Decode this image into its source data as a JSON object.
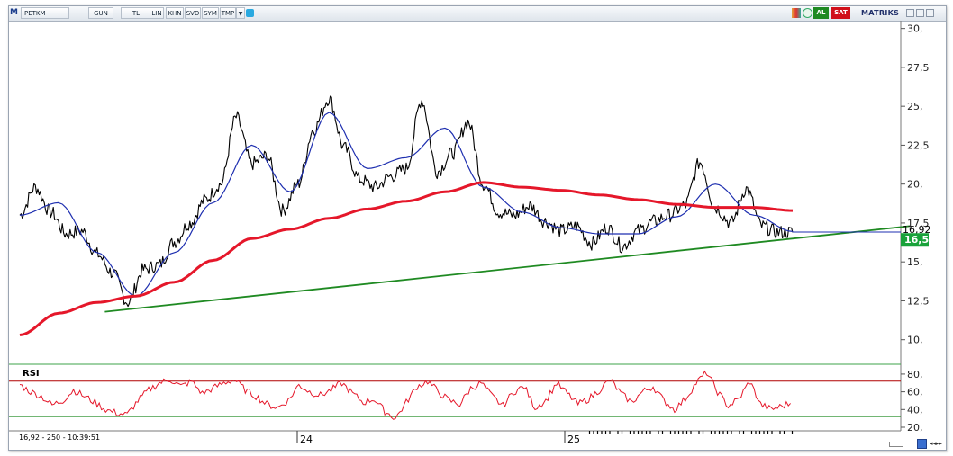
{
  "toolbar": {
    "logo": "M",
    "symbol": "PETKM",
    "period": "GUN",
    "currency": "TL",
    "buttons": [
      "LIN",
      "KHN",
      "SVD",
      "SYM",
      "TMP"
    ],
    "buy_label": "AL",
    "sell_label": "SAT",
    "brand": "MATRIKS",
    "icons": [
      "dropdown-arrow-icon",
      "twitter-icon",
      "color-palette-icon",
      "clock-icon",
      "minimize-icon",
      "maximize-icon",
      "close-icon"
    ]
  },
  "colors": {
    "price": "#000000",
    "fast_ma": "#1e2fb0",
    "slow_ma": "#e5172a",
    "trendline": "#1f8a22",
    "rsi": "#e5172a",
    "rsi_upper": "#b00000",
    "rsi_lower": "#1f8a22",
    "last_price_badge": "#19a23a",
    "buy": "#1f8a22",
    "sell": "#d0101a"
  },
  "price_axis": {
    "ticks": [
      "30,",
      "27,5",
      "25,",
      "22,5",
      "20,",
      "17,5",
      "15,",
      "12,5",
      "10,"
    ],
    "last_price_label": "16,92",
    "badge_label": "16,5"
  },
  "rsi_panel": {
    "title": "RSI",
    "ticks": [
      "80,",
      "60,",
      "40,",
      "20,"
    ]
  },
  "time_axis": {
    "labels": [
      "24",
      "25"
    ]
  },
  "status_bar": {
    "text": "16,92 - 250 - 10:39:51"
  },
  "chart_data": {
    "type": "line",
    "symbol": "PETKM",
    "ylim": [
      9,
      30.5
    ],
    "grid": false,
    "series": [
      {
        "name": "",
        "role": "price",
        "t": [
          0,
          0.02,
          0.04,
          0.06,
          0.08,
          0.1,
          0.12,
          0.14,
          0.16,
          0.18,
          0.2,
          0.22,
          0.24,
          0.26,
          0.28,
          0.3,
          0.32,
          0.34,
          0.36,
          0.38,
          0.4,
          0.42,
          0.44,
          0.46,
          0.48,
          0.5,
          0.52,
          0.54,
          0.56,
          0.58,
          0.6,
          0.62,
          0.64,
          0.66,
          0.68,
          0.7,
          0.72,
          0.74,
          0.76,
          0.78,
          0.8,
          0.82,
          0.84,
          0.86,
          0.88,
          0.9,
          0.92,
          0.94,
          0.96,
          0.98,
          1.0
        ],
        "values": [
          18.0,
          19.8,
          18.2,
          16.8,
          17.0,
          15.5,
          14.3,
          12.4,
          14.5,
          14.8,
          16.3,
          17.5,
          19.0,
          20.0,
          24.3,
          21.3,
          21.8,
          18.3,
          20.0,
          23.5,
          25.5,
          22.3,
          20.3,
          19.8,
          20.5,
          21.0,
          25.4,
          20.8,
          22.0,
          24.0,
          20.0,
          18.2,
          18.0,
          18.6,
          17.6,
          17.0,
          17.3,
          16.2,
          17.2,
          16.0,
          17.0,
          17.6,
          18.0,
          18.6,
          21.4,
          18.5,
          17.5,
          19.7,
          17.3,
          16.9,
          16.92
        ]
      },
      {
        "name": "",
        "role": "moving-average-fast",
        "t": [
          0,
          0.05,
          0.1,
          0.15,
          0.2,
          0.25,
          0.3,
          0.35,
          0.4,
          0.45,
          0.5,
          0.55,
          0.6,
          0.65,
          0.7,
          0.75,
          0.8,
          0.85,
          0.9,
          0.95,
          1.0
        ],
        "values": [
          18.0,
          18.8,
          15.6,
          12.8,
          15.6,
          18.8,
          22.5,
          19.5,
          24.6,
          21.0,
          21.7,
          23.6,
          19.8,
          18.2,
          17.2,
          16.8,
          16.8,
          17.9,
          20.0,
          18.0,
          16.95
        ]
      },
      {
        "name": "",
        "role": "moving-average-slow",
        "t": [
          0,
          0.05,
          0.1,
          0.15,
          0.2,
          0.25,
          0.3,
          0.35,
          0.4,
          0.45,
          0.5,
          0.55,
          0.6,
          0.65,
          0.7,
          0.75,
          0.8,
          0.85,
          0.9,
          0.95,
          1.0
        ],
        "values": [
          10.3,
          11.7,
          12.4,
          12.8,
          13.7,
          15.1,
          16.5,
          17.1,
          17.8,
          18.4,
          18.9,
          19.5,
          20.1,
          19.8,
          19.6,
          19.3,
          19.0,
          18.7,
          18.5,
          18.5,
          18.3
        ]
      },
      {
        "name": "",
        "role": "trendline",
        "t": [
          0.11,
          1.0
        ],
        "values": [
          11.8,
          17.3
        ]
      }
    ],
    "rsi": {
      "ylim": [
        20,
        85
      ],
      "upper_band": 72,
      "lower_band": 32,
      "values": [
        68,
        60,
        55,
        45,
        50,
        62,
        55,
        48,
        40,
        36,
        34,
        50,
        62,
        70,
        74,
        66,
        72,
        58,
        64,
        70,
        74,
        62,
        55,
        46,
        42,
        50,
        68,
        60,
        56,
        62,
        70,
        58,
        48,
        52,
        38,
        30,
        48,
        66,
        72,
        60,
        50,
        46,
        64,
        70,
        55,
        44,
        60,
        66,
        42,
        50,
        70,
        58,
        46,
        52,
        62,
        74,
        58,
        48,
        60,
        66,
        50,
        40,
        52,
        70,
        82,
        60,
        44,
        52,
        72,
        46,
        40,
        44,
        48
      ]
    }
  }
}
